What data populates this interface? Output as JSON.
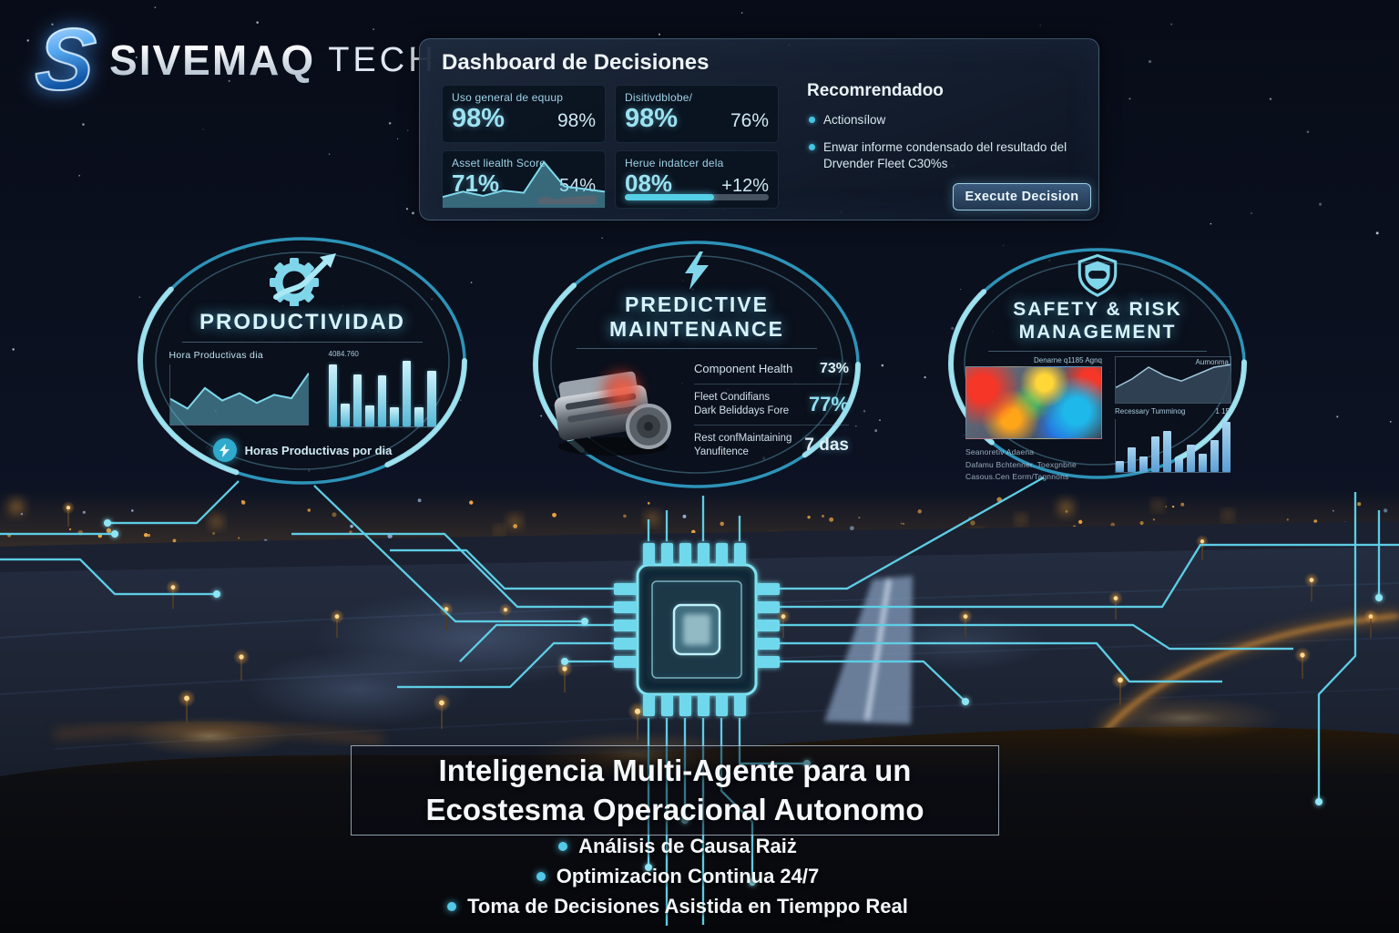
{
  "logo": {
    "letter": "S",
    "brand": "SIVEMAQ",
    "suffix": "TECH"
  },
  "dashboard": {
    "title": "Dashboard de Decisiones",
    "metrics": [
      {
        "label": "Uso general de equup",
        "value": "98%",
        "secondary": "98%"
      },
      {
        "label": "Disitivdblobe/",
        "value": "98%",
        "secondary": "76%"
      },
      {
        "label": "Asset liealth Score",
        "value": "71%",
        "secondary": "54%"
      },
      {
        "label": "Herue indatcer dela",
        "value": "08%",
        "secondary": "+12%"
      }
    ],
    "sparkline_values": [
      0.2,
      0.3,
      0.22,
      0.32,
      0.28,
      0.85,
      0.4,
      0.35,
      0.3
    ],
    "progress_percent": 62,
    "recommendation": {
      "title": "Recomrendadoo",
      "items": [
        "Actionsílow",
        "Enwar informe condensado del resultado del Drvender Fleet C30%s"
      ],
      "button_label": "Execute Decision"
    }
  },
  "nodes": {
    "productivity": {
      "title": "PRODUCTIVIDAD",
      "chart_left_title": "Hora Productivas dia",
      "chart_right_title": "4084.760",
      "footer": "Horas Productivas por dia",
      "line_values": [
        0.45,
        0.28,
        0.64,
        0.42,
        0.55,
        0.38,
        0.52,
        0.46,
        0.9
      ],
      "bar_values": [
        0.95,
        0.35,
        0.8,
        0.32,
        0.78,
        0.3,
        1.0,
        0.3,
        0.85
      ]
    },
    "maintenance": {
      "title_line1": "PREDICTIVE",
      "title_line2": "MAINTENANCE",
      "stats": [
        {
          "label1": "Component Health",
          "label2": "",
          "value": "73%"
        },
        {
          "label1": "Fleet Condifians",
          "label2": "Dark Beliddays Fore",
          "value": "77%"
        },
        {
          "label1": "Rest confMaintaining",
          "label2": "Yanufitence",
          "value": "7 das"
        }
      ]
    },
    "safety": {
      "title_line1": "SAFETY & RISK",
      "title_line2": "MANAGEMENT",
      "heatmap_caption": "Denarne q1185 Agnq",
      "line_caption": "Aumonma",
      "mid_caption": "Recessary Tumminog",
      "mid_value": "1 15",
      "notes": [
        "Seanoretiv Adaena",
        "Dafamu Bchtenner. Toexgnbne",
        "Casous.Cen Eorm/Tagnnons"
      ],
      "line_values": [
        0.35,
        0.55,
        0.82,
        0.62,
        0.5,
        0.66,
        0.82,
        0.88
      ],
      "bar_values": [
        0.22,
        0.48,
        0.3,
        0.68,
        0.78,
        0.26,
        0.52,
        0.36,
        0.62,
        0.95
      ]
    }
  },
  "footer": {
    "title_line1": "Inteligencia Multi-Agente para un",
    "title_line2": "Ecostesma Operacional Autonomo",
    "bullets": [
      "Análisis de Causa Raiż",
      "Optimizacion Continua 24/7",
      "Toma de Decisiones Asistida en Tiemppo Real"
    ]
  },
  "colors": {
    "accent_cyan": "#7fd6ea",
    "accent_orange": "#f0a243",
    "logo_blue": "#2f7fd6"
  }
}
